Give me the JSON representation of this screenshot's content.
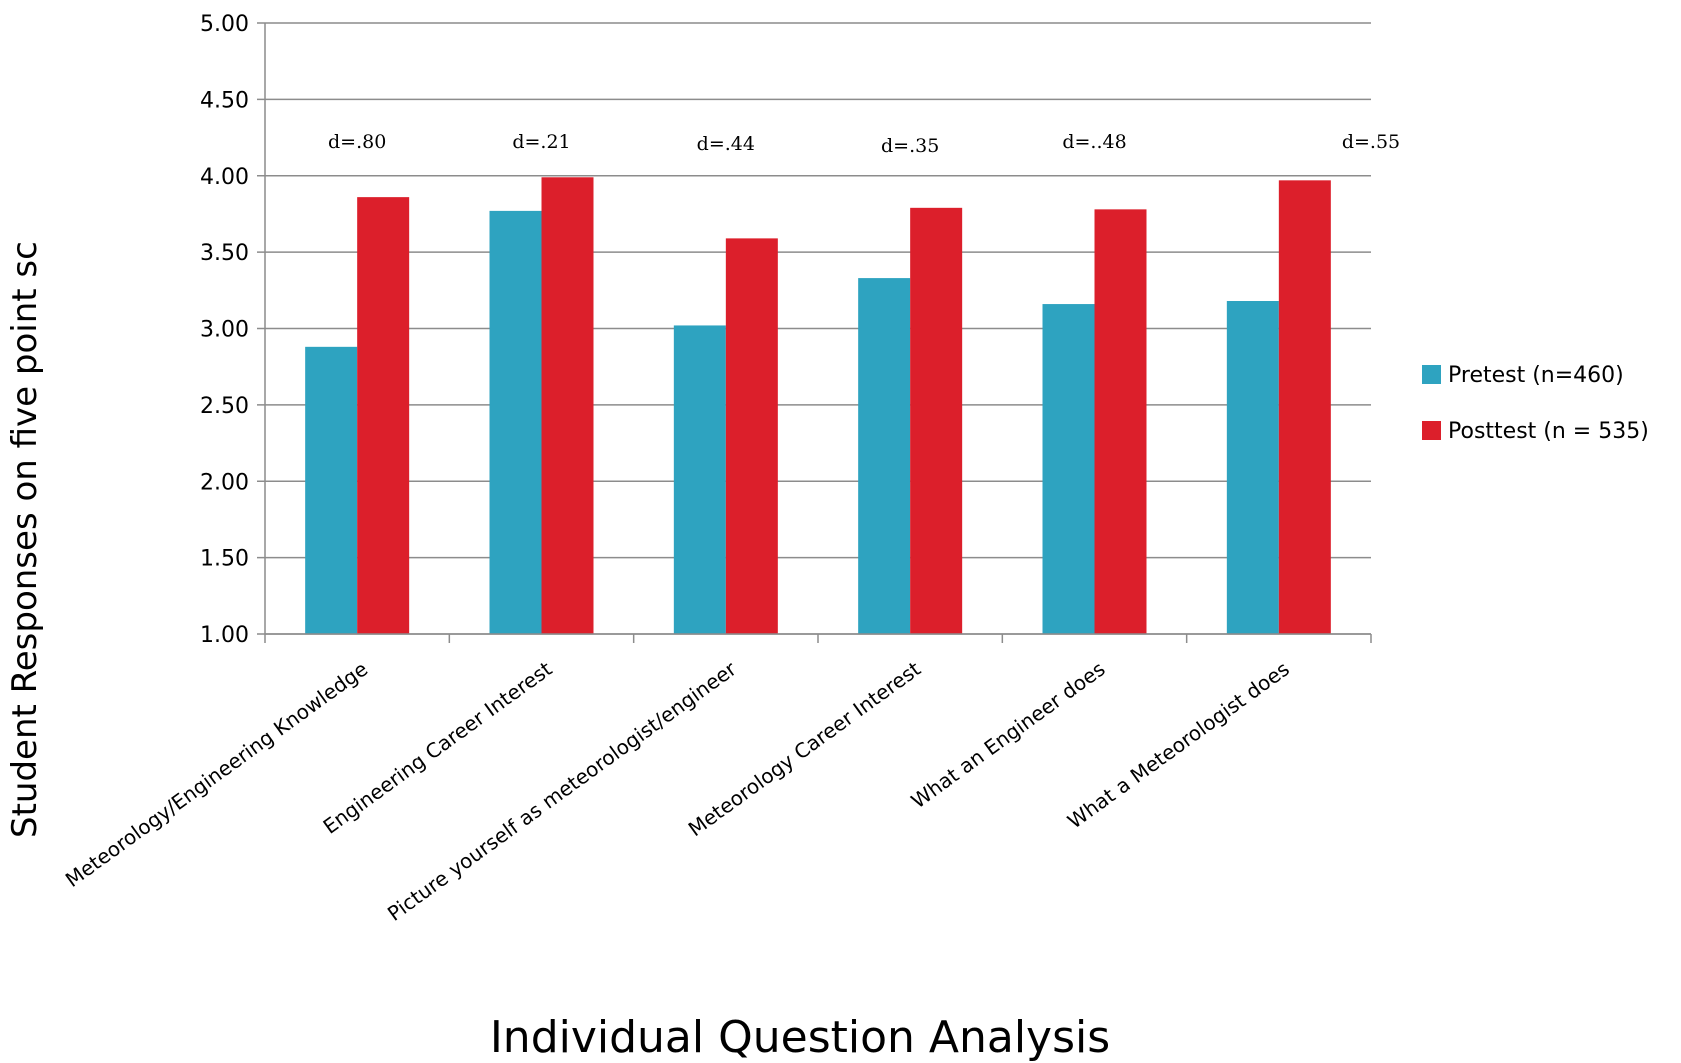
{
  "chart_data": {
    "type": "bar",
    "title": "",
    "xlabel": "Individual Question Analysis",
    "ylabel": "Student Responses on five point sc",
    "ylim": [
      1.0,
      5.0
    ],
    "yticks": [
      "1.00",
      "1.50",
      "2.00",
      "2.50",
      "3.00",
      "3.50",
      "4.00",
      "4.50",
      "5.00"
    ],
    "categories": [
      "Meteorology/Engineering Knowledge",
      "Engineering Career Interest",
      "Picture yourself as meteorologist/engineer",
      "Meteorology Career Interest",
      "What an Engineer does",
      "What a Meteorologist does"
    ],
    "series": [
      {
        "name": "Pretest (n=460)",
        "color": "#2ea3c0",
        "values": [
          2.88,
          3.77,
          3.02,
          3.33,
          3.16,
          3.18
        ]
      },
      {
        "name": "Posttest (n = 535)",
        "color": "#dc1f2b",
        "values": [
          3.86,
          3.99,
          3.59,
          3.79,
          3.78,
          3.97
        ]
      }
    ],
    "annotations": [
      "d=.80",
      "d=.21",
      "d=.44",
      "d=.35",
      "d=..48",
      "d=.55"
    ],
    "grid": true,
    "legend_position": "right"
  }
}
